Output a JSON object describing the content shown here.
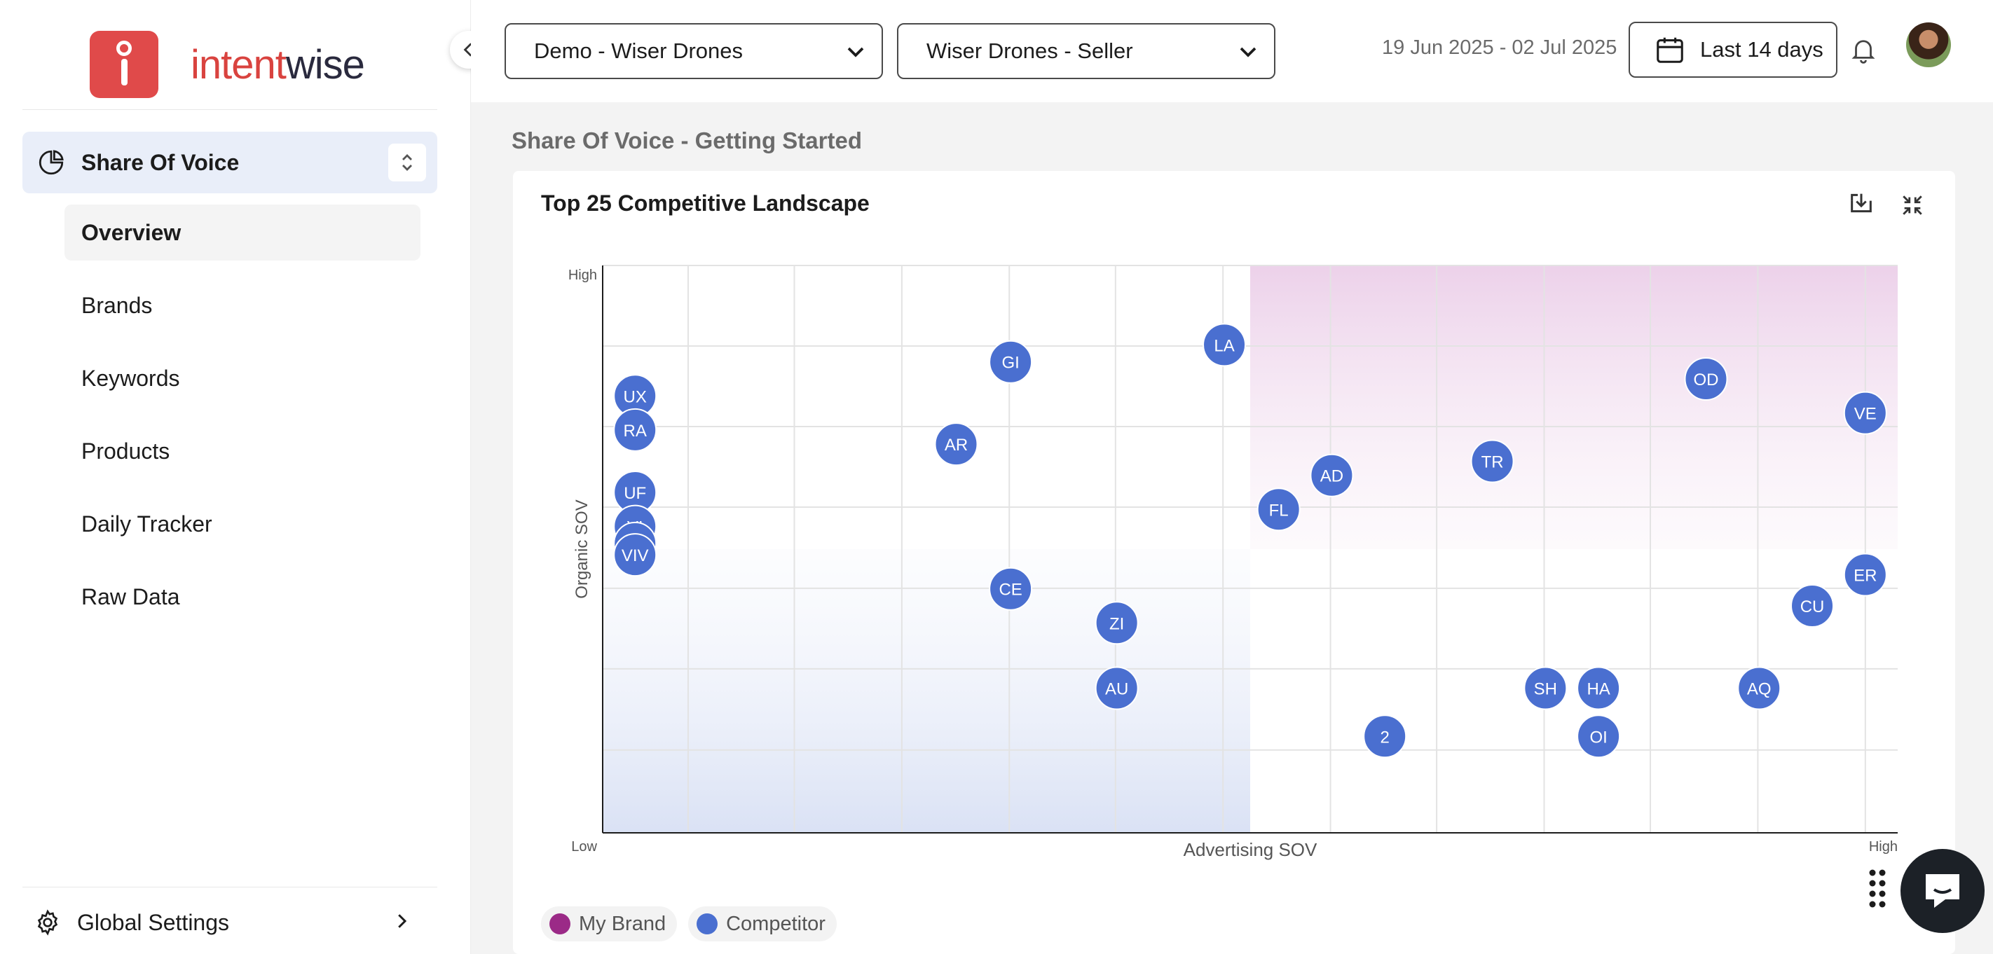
{
  "brand": {
    "name_part1": "intent",
    "name_part2": "wise",
    "icon": "intentwise-logo-icon"
  },
  "sidebar": {
    "module_label": "Share Of Voice",
    "module_icon": "pie-chart-icon",
    "items": [
      {
        "label": "Overview",
        "active": true
      },
      {
        "label": "Brands",
        "active": false
      },
      {
        "label": "Keywords",
        "active": false
      },
      {
        "label": "Products",
        "active": false
      },
      {
        "label": "Daily Tracker",
        "active": false
      },
      {
        "label": "Raw Data",
        "active": false
      }
    ],
    "settings_label": "Global Settings"
  },
  "header": {
    "account_select": "Demo - Wiser Drones",
    "profile_select": "Wiser Drones - Seller",
    "date_range": "19 Jun 2025 - 02 Jul 2025",
    "period_label": "Last 14 days"
  },
  "page": {
    "title": "Share Of Voice - Getting Started"
  },
  "card": {
    "title": "Top 25 Competitive Landscape"
  },
  "colors": {
    "competitor": "#4a6fd0",
    "my_brand": "#9b2a87",
    "accent": "#e04a4a"
  },
  "legend": [
    {
      "label": "My Brand",
      "color": "#9b2a87"
    },
    {
      "label": "Competitor",
      "color": "#4a6fd0"
    }
  ],
  "chart_data": {
    "type": "scatter",
    "xlabel": "Advertising SOV",
    "ylabel": "Organic SOV",
    "x_tick_labels": [
      "Low",
      "High"
    ],
    "y_tick_labels": [
      "Low",
      "High"
    ],
    "xlim": [
      0,
      100
    ],
    "ylim": [
      0,
      100
    ],
    "grid": true,
    "legend_position": "bottom-left",
    "series": [
      {
        "name": "Competitor",
        "points": [
          {
            "label": "UX",
            "x": 2.5,
            "y": 77
          },
          {
            "label": "RA",
            "x": 2.5,
            "y": 71
          },
          {
            "label": "UF",
            "x": 2.5,
            "y": 60
          },
          {
            "label": "VI",
            "x": 2.5,
            "y": 54
          },
          {
            "label": "GE",
            "x": 2.5,
            "y": 51
          },
          {
            "label": "VIV",
            "x": 2.5,
            "y": 49
          },
          {
            "label": "GI",
            "x": 31.5,
            "y": 83
          },
          {
            "label": "AR",
            "x": 27.3,
            "y": 68.5
          },
          {
            "label": "LA",
            "x": 48,
            "y": 86
          },
          {
            "label": "CE",
            "x": 31.5,
            "y": 43
          },
          {
            "label": "ZI",
            "x": 39.7,
            "y": 37
          },
          {
            "label": "AU",
            "x": 39.7,
            "y": 25.5
          },
          {
            "label": "FL",
            "x": 52.2,
            "y": 57
          },
          {
            "label": "AD",
            "x": 56.3,
            "y": 63
          },
          {
            "label": "TR",
            "x": 68.7,
            "y": 65.5
          },
          {
            "label": "OD",
            "x": 85.2,
            "y": 80
          },
          {
            "label": "VE",
            "x": 97.5,
            "y": 74
          },
          {
            "label": "ER",
            "x": 97.5,
            "y": 45.5
          },
          {
            "label": "CU",
            "x": 93.4,
            "y": 40
          },
          {
            "label": "AQ",
            "x": 89.3,
            "y": 25.5
          },
          {
            "label": "SH",
            "x": 72.8,
            "y": 25.5
          },
          {
            "label": "HA",
            "x": 76.9,
            "y": 25.5
          },
          {
            "label": "OI",
            "x": 76.9,
            "y": 17
          },
          {
            "label": "2",
            "x": 60.4,
            "y": 17
          }
        ]
      }
    ]
  }
}
